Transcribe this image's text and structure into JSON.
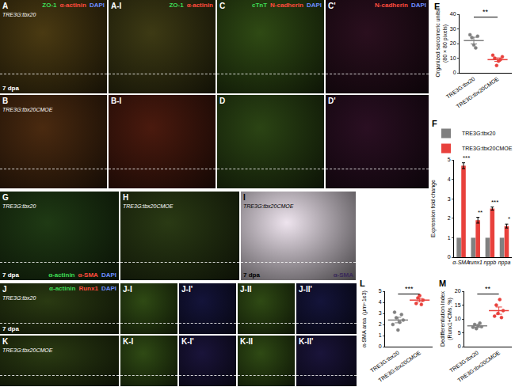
{
  "panels": [
    {
      "label": "A",
      "color": "#4a3a12",
      "genotype": "TRE3G:tbx20",
      "stage": "7 dpa",
      "channels": [
        {
          "text": "ZO-1",
          "color": "#3ddc55"
        },
        {
          "text": "α-actinin",
          "color": "#ff4b3e"
        },
        {
          "text": "DAPI",
          "color": "#6a8cff"
        }
      ]
    },
    {
      "label": "A-I",
      "color": "#3d3a14",
      "channels": [
        {
          "text": "ZO-1",
          "color": "#3ddc55"
        },
        {
          "text": "α-actinin",
          "color": "#ff4b3e"
        }
      ]
    },
    {
      "label": "C",
      "color": "#2f4a14",
      "channels": [
        {
          "text": "cTnT",
          "color": "#3ddc55"
        },
        {
          "text": "N-cadherin",
          "color": "#ff4b3e"
        },
        {
          "text": "DAPI",
          "color": "#6a8cff"
        }
      ]
    },
    {
      "label": "C'",
      "color": "#2a0f1e",
      "channels": [
        {
          "text": "N-cadherin",
          "color": "#ff4b3e"
        },
        {
          "text": "DAPI",
          "color": "#6a8cff"
        }
      ]
    },
    {
      "label": "B",
      "color": "#4a2a10",
      "genotype": "TRE3G:tbx20CMOE"
    },
    {
      "label": "B-I",
      "color": "#4a1a0e"
    },
    {
      "label": "D",
      "color": "#2b4414"
    },
    {
      "label": "D'",
      "color": "#2a0f22"
    },
    {
      "label": "G",
      "color": "#1f3a14",
      "genotype": "TRE3G:tbx20",
      "stage": "7 dpa",
      "channels_bottom": [
        {
          "text": "α-actinin",
          "color": "#3ddc55"
        },
        {
          "text": "α-SMA",
          "color": "#ff4b3e"
        },
        {
          "text": "DAPI",
          "color": "#6a8cff"
        }
      ]
    },
    {
      "label": "H",
      "color": "#2a3a14",
      "genotype": "TRE3G:tbx20CMOE"
    },
    {
      "label": "I",
      "color": "#eee4ee",
      "genotype": "TRE3G:tbx20CMOE",
      "stage": "7 dpa",
      "channels_bottom": [
        {
          "text": "α-SMA",
          "color": "#3a2a5a"
        }
      ]
    },
    {
      "label": "J",
      "color": "#2a3a12",
      "genotype": "TRE3G:tbx20",
      "stage": "7 dpa",
      "channels": [
        {
          "text": "α-actinin",
          "color": "#3ddc55"
        },
        {
          "text": "Runx1",
          "color": "#ff4b3e"
        },
        {
          "text": "DAPI",
          "color": "#6a8cff"
        }
      ]
    },
    {
      "label": "J-I",
      "color": "#2f4a14"
    },
    {
      "label": "J-I'",
      "color": "#14143a"
    },
    {
      "label": "J-II",
      "color": "#2f4a14"
    },
    {
      "label": "J-II'",
      "color": "#14143a"
    },
    {
      "label": "K",
      "color": "#2a3a12",
      "genotype": "TRE3G:tbx20CMOE"
    },
    {
      "label": "K-I",
      "color": "#2f4a14"
    },
    {
      "label": "K-I'",
      "color": "#1a143a"
    },
    {
      "label": "K-II",
      "color": "#2f4a14"
    },
    {
      "label": "K-II'",
      "color": "#1a143a"
    }
  ],
  "chart_data": [
    {
      "panel": "E",
      "type": "dot",
      "categories": [
        "TRE3G:tbx20",
        "TRE3G:tbx20CMOE"
      ],
      "values": [
        [
          26,
          24,
          19,
          17,
          25
        ],
        [
          12,
          10,
          5,
          8,
          9,
          11
        ]
      ],
      "means": [
        22,
        9
      ],
      "errors": [
        2.3,
        1.2
      ],
      "colors": [
        "#808080",
        "#e8413c"
      ],
      "ylabel": [
        "Organized sarcomeric units",
        "(80 × 80 pixels)"
      ],
      "ylim": [
        0,
        40
      ],
      "yticks": [
        0,
        10,
        20,
        30,
        40
      ],
      "significance": "**"
    },
    {
      "panel": "F",
      "type": "bar",
      "categories": [
        "α-SMA",
        "runx1",
        "nppb",
        "nppa"
      ],
      "series": [
        {
          "name": "TRE3G:tbx20",
          "color": "#808080",
          "values": [
            1,
            1,
            1,
            1
          ]
        },
        {
          "name": "TRE3G:tbx20CMOE",
          "color": "#e8413c",
          "values": [
            4.7,
            1.9,
            2.5,
            1.6
          ],
          "errors": [
            0.15,
            0.15,
            0.08,
            0.1
          ]
        }
      ],
      "ylabel": [
        "Expression fold change"
      ],
      "ylim": [
        0,
        5
      ],
      "yticks": [
        0,
        1,
        2,
        3,
        4,
        5
      ],
      "significance": [
        "***",
        "**",
        "***",
        "*"
      ],
      "legend": "top"
    },
    {
      "panel": "L",
      "type": "dot",
      "categories": [
        "TRE3G:tbx20",
        "TRE3G:tbx20CMOE"
      ],
      "values": [
        [
          2.0,
          3.1,
          2.6,
          1.5,
          2.2,
          2.9,
          2.4
        ],
        [
          3.9,
          4.4,
          4.6,
          3.8,
          4.2
        ]
      ],
      "means": [
        2.4,
        4.2
      ],
      "errors": [
        0.25,
        0.15
      ],
      "colors": [
        "#808080",
        "#e8413c"
      ],
      "ylabel": [
        "α-SMA area  (μm²·1e3)"
      ],
      "ylim": [
        0,
        5
      ],
      "yticks": [
        0,
        1,
        2,
        3,
        4,
        5
      ],
      "significance": "***"
    },
    {
      "panel": "M",
      "type": "dot",
      "categories": [
        "TRE3G:tbx20",
        "TRE3G:tbx20CMOE"
      ],
      "values": [
        [
          7,
          8,
          6.5,
          7.5,
          8.5,
          7.2
        ],
        [
          11,
          15,
          12,
          17,
          10.5,
          13
        ]
      ],
      "means": [
        7.5,
        13
      ],
      "errors": [
        0.5,
        1.3
      ],
      "colors": [
        "#808080",
        "#e8413c"
      ],
      "ylabel": [
        "Dedifferentiation Index",
        "(Runx1+CMs, %)"
      ],
      "ylim": [
        0,
        20
      ],
      "yticks": [
        0,
        5,
        10,
        15,
        20
      ],
      "significance": "**"
    }
  ]
}
